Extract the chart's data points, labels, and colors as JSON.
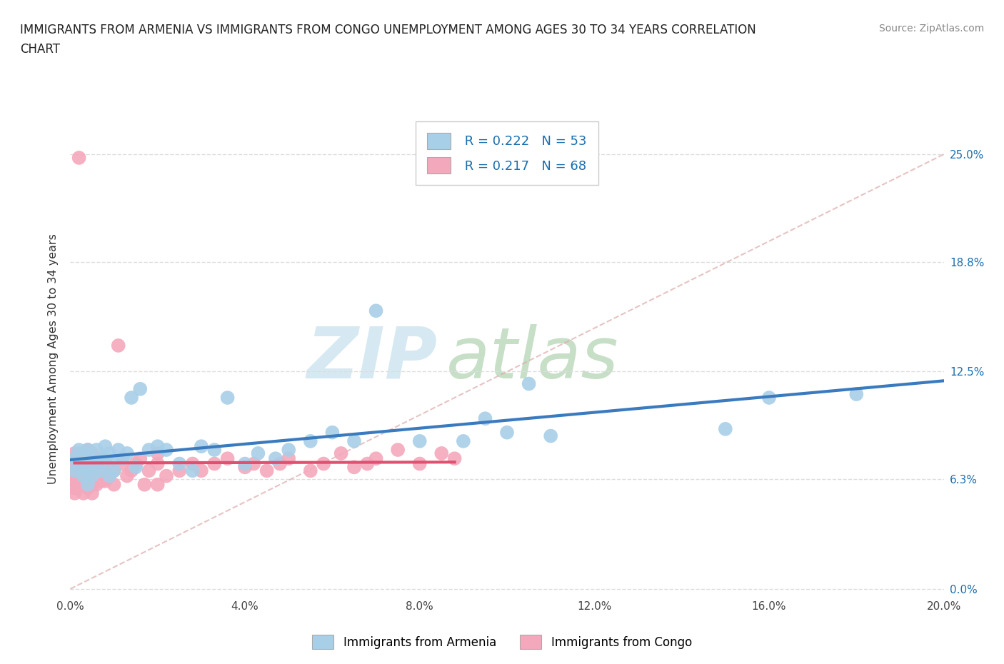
{
  "title_line1": "IMMIGRANTS FROM ARMENIA VS IMMIGRANTS FROM CONGO UNEMPLOYMENT AMONG AGES 30 TO 34 YEARS CORRELATION",
  "title_line2": "CHART",
  "source_text": "Source: ZipAtlas.com",
  "ylabel": "Unemployment Among Ages 30 to 34 years",
  "xlim": [
    0.0,
    0.2
  ],
  "ylim": [
    -0.005,
    0.27
  ],
  "x_ticks": [
    0.0,
    0.04,
    0.08,
    0.12,
    0.16,
    0.2
  ],
  "x_tick_labels": [
    "0.0%",
    "4.0%",
    "8.0%",
    "12.0%",
    "16.0%",
    "20.0%"
  ],
  "y_ticks": [
    0.0,
    0.063,
    0.125,
    0.188,
    0.25
  ],
  "y_tick_labels": [
    "0.0%",
    "6.3%",
    "12.5%",
    "18.8%",
    "25.0%"
  ],
  "armenia_color": "#a8cfe8",
  "congo_color": "#f4a8bc",
  "armenia_R": 0.222,
  "armenia_N": 53,
  "congo_R": 0.217,
  "congo_N": 68,
  "armenia_line_color": "#3a7abf",
  "congo_line_color": "#e05070",
  "diag_line_color": "#ddaaaa",
  "legend_color": "#1a6faf",
  "watermark_zip_color": "#cce4f0",
  "watermark_atlas_color": "#b8d8b8",
  "armenia_x": [
    0.001,
    0.001,
    0.002,
    0.002,
    0.003,
    0.003,
    0.003,
    0.004,
    0.004,
    0.004,
    0.005,
    0.005,
    0.006,
    0.006,
    0.007,
    0.007,
    0.008,
    0.008,
    0.009,
    0.009,
    0.01,
    0.01,
    0.011,
    0.012,
    0.013,
    0.014,
    0.015,
    0.016,
    0.018,
    0.02,
    0.022,
    0.025,
    0.028,
    0.03,
    0.033,
    0.036,
    0.04,
    0.043,
    0.047,
    0.05,
    0.055,
    0.06,
    0.065,
    0.07,
    0.08,
    0.09,
    0.095,
    0.1,
    0.105,
    0.11,
    0.15,
    0.16,
    0.18
  ],
  "armenia_y": [
    0.068,
    0.075,
    0.07,
    0.08,
    0.065,
    0.072,
    0.078,
    0.06,
    0.068,
    0.08,
    0.065,
    0.073,
    0.07,
    0.08,
    0.072,
    0.068,
    0.075,
    0.082,
    0.078,
    0.065,
    0.068,
    0.073,
    0.08,
    0.075,
    0.078,
    0.11,
    0.07,
    0.115,
    0.08,
    0.082,
    0.08,
    0.072,
    0.068,
    0.082,
    0.08,
    0.11,
    0.072,
    0.078,
    0.075,
    0.08,
    0.085,
    0.09,
    0.085,
    0.16,
    0.085,
    0.085,
    0.098,
    0.09,
    0.118,
    0.088,
    0.092,
    0.11,
    0.112
  ],
  "congo_x": [
    0.001,
    0.001,
    0.001,
    0.001,
    0.001,
    0.001,
    0.001,
    0.001,
    0.002,
    0.002,
    0.002,
    0.002,
    0.003,
    0.003,
    0.003,
    0.003,
    0.004,
    0.004,
    0.004,
    0.004,
    0.005,
    0.005,
    0.005,
    0.005,
    0.005,
    0.006,
    0.006,
    0.007,
    0.007,
    0.007,
    0.008,
    0.008,
    0.009,
    0.01,
    0.01,
    0.011,
    0.012,
    0.013,
    0.014,
    0.015,
    0.016,
    0.017,
    0.018,
    0.02,
    0.02,
    0.02,
    0.022,
    0.025,
    0.028,
    0.03,
    0.033,
    0.036,
    0.04,
    0.042,
    0.045,
    0.048,
    0.05,
    0.055,
    0.058,
    0.062,
    0.065,
    0.068,
    0.07,
    0.075,
    0.08,
    0.085,
    0.088,
    0.002
  ],
  "congo_y": [
    0.055,
    0.062,
    0.068,
    0.075,
    0.078,
    0.065,
    0.072,
    0.058,
    0.06,
    0.068,
    0.072,
    0.078,
    0.055,
    0.062,
    0.068,
    0.075,
    0.058,
    0.065,
    0.072,
    0.08,
    0.055,
    0.06,
    0.068,
    0.072,
    0.078,
    0.06,
    0.068,
    0.062,
    0.068,
    0.075,
    0.062,
    0.072,
    0.065,
    0.06,
    0.068,
    0.14,
    0.072,
    0.065,
    0.068,
    0.072,
    0.075,
    0.06,
    0.068,
    0.06,
    0.072,
    0.078,
    0.065,
    0.068,
    0.072,
    0.068,
    0.072,
    0.075,
    0.07,
    0.072,
    0.068,
    0.072,
    0.075,
    0.068,
    0.072,
    0.078,
    0.07,
    0.072,
    0.075,
    0.08,
    0.072,
    0.078,
    0.075,
    0.248
  ]
}
